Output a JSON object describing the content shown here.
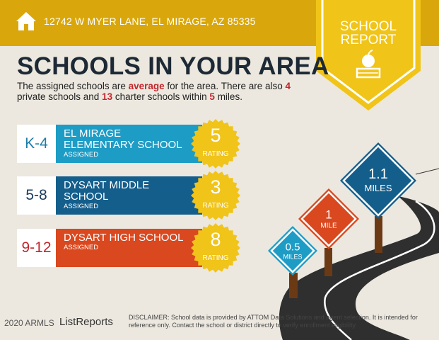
{
  "header": {
    "address": "12742 W MYER LANE, EL MIRAGE, AZ 85335",
    "icon": "home-icon",
    "badge_line1": "SCHOOL",
    "badge_line2": "REPORT",
    "badge_icon": "apple-on-book-icon"
  },
  "title": "SCHOOLS IN YOUR AREA",
  "summary": {
    "p1": "The assigned schools are ",
    "quality": "average",
    "p2": " for the area. There are also ",
    "private_count": "4",
    "p3": " private schools and ",
    "charter_count": "13",
    "p4": " charter schools within ",
    "radius": "5",
    "p5": " miles."
  },
  "schools": [
    {
      "grades": "K-4",
      "name": "EL MIRAGE ELEMENTARY SCHOOL",
      "status": "ASSIGNED",
      "rating": "5",
      "rating_label": "RATING",
      "color": "#1d9cc6"
    },
    {
      "grades": "5-8",
      "name": "DYSART MIDDLE SCHOOL",
      "status": "ASSIGNED",
      "rating": "3",
      "rating_label": "RATING",
      "color": "#145e8c"
    },
    {
      "grades": "9-12",
      "name": "DYSART HIGH SCHOOL",
      "status": "ASSIGNED",
      "rating": "8",
      "rating_label": "RATING",
      "color": "#d9481f"
    }
  ],
  "signs": [
    {
      "distance": "0.5",
      "unit": "MILES",
      "color": "#1d9cc6"
    },
    {
      "distance": "1",
      "unit": "MILE",
      "color": "#d9481f"
    },
    {
      "distance": "1.1",
      "unit": "MILES",
      "color": "#145e8c"
    }
  ],
  "footer": {
    "copyright": "2020 ARMLS",
    "brand": "ListReports",
    "disclaimer_label": "DISCLAIMER:",
    "disclaimer": " School data is provided by ATTOM Data Solutions and agent selection. It is intended for reference only. Contact the school or district directly to verify enrollment eligibility."
  },
  "colors": {
    "header": "#d9a70b",
    "badge": "#f0c419",
    "accent_red": "#c1272d",
    "title": "#1d2935"
  }
}
